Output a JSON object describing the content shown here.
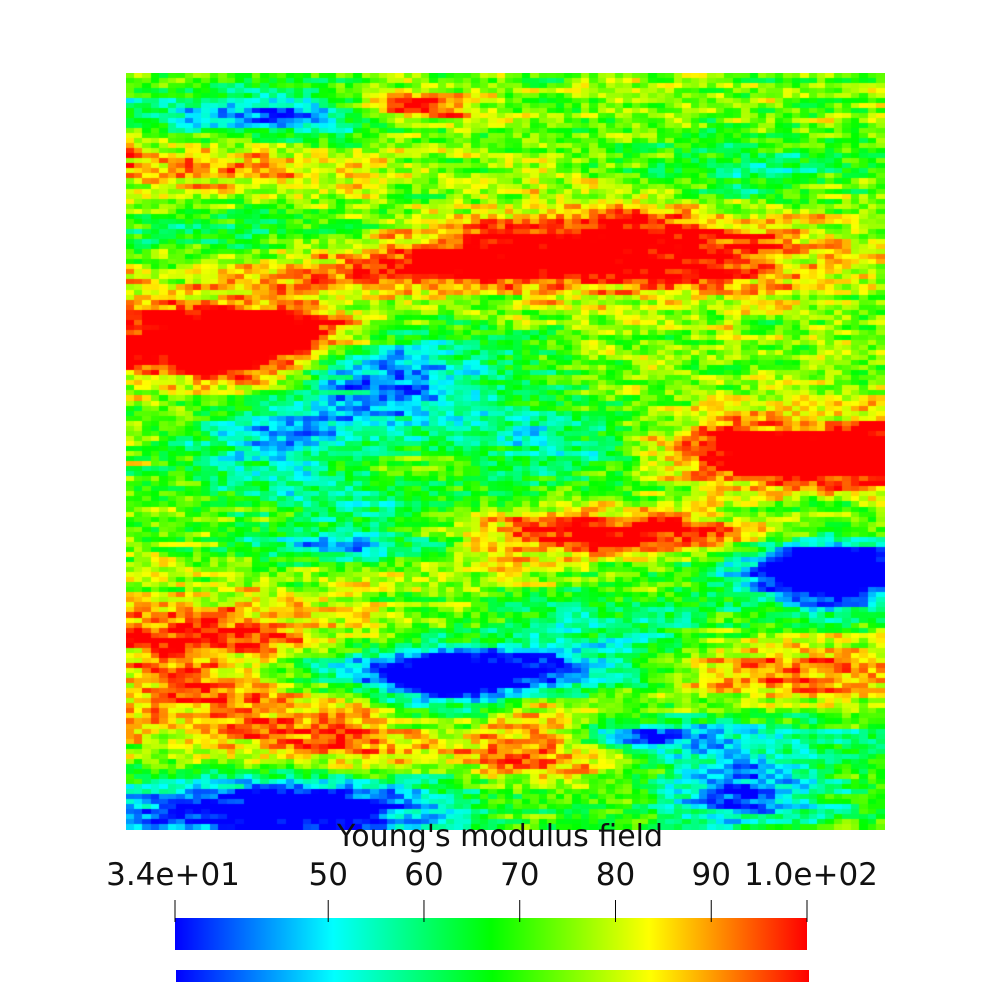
{
  "chart_data": {
    "type": "heatmap",
    "title": "",
    "colorbar": {
      "title": "Young's modulus  field",
      "min": 34,
      "max": 100,
      "ticks": [
        {
          "value": 34,
          "label": "3.4e+01"
        },
        {
          "value": 50,
          "label": "50"
        },
        {
          "value": 60,
          "label": "60"
        },
        {
          "value": 70,
          "label": "70"
        },
        {
          "value": 80,
          "label": "80"
        },
        {
          "value": 90,
          "label": "90"
        },
        {
          "value": 100,
          "label": "1.0e+02"
        }
      ],
      "colormap": [
        "#0000ff",
        "#00ffff",
        "#00ff00",
        "#ffff00",
        "#ff0000"
      ]
    }
  }
}
